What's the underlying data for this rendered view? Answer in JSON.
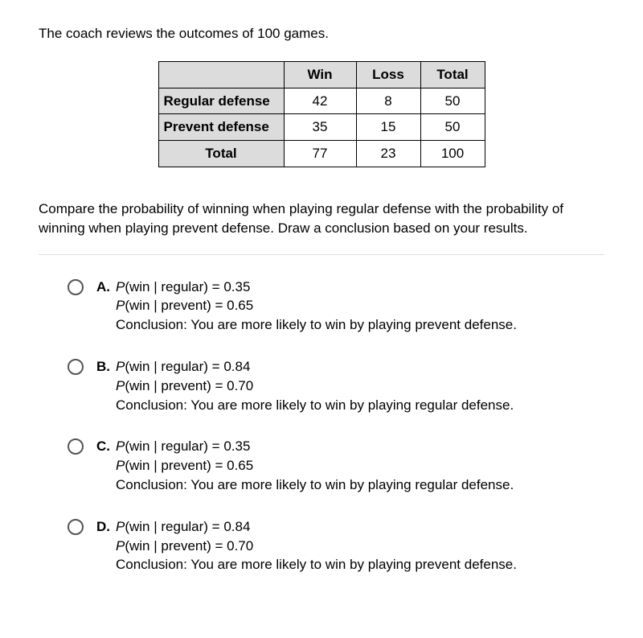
{
  "intro": "The coach reviews the outcomes of 100 games.",
  "table": {
    "columns": [
      "",
      "Win",
      "Loss",
      "Total"
    ],
    "rows": [
      {
        "label": "Regular defense",
        "win": "42",
        "loss": "8",
        "total": "50",
        "center": false
      },
      {
        "label": "Prevent defense",
        "win": "35",
        "loss": "15",
        "total": "50",
        "center": false
      },
      {
        "label": "Total",
        "win": "77",
        "loss": "23",
        "total": "100",
        "center": true
      }
    ]
  },
  "prompt": "Compare the probability of winning when playing regular defense with the probability of winning when playing prevent defense. Draw a conclusion based on your results.",
  "choices": [
    {
      "letter": "A.",
      "p_reg_label": "(win | regular) = ",
      "p_reg_val": "0.35",
      "p_prev_label": "(win | prevent) = ",
      "p_prev_val": "0.65",
      "conclusion": "Conclusion: You are more likely to win by playing prevent defense."
    },
    {
      "letter": "B.",
      "p_reg_label": "(win | regular) = ",
      "p_reg_val": "0.84",
      "p_prev_label": "(win | prevent) = ",
      "p_prev_val": "0.70",
      "conclusion": "Conclusion: You are more likely to win by playing regular defense."
    },
    {
      "letter": "C.",
      "p_reg_label": "(win | regular) = ",
      "p_reg_val": "0.35",
      "p_prev_label": "(win | prevent) = ",
      "p_prev_val": "0.65",
      "conclusion": "Conclusion: You are more likely to win by playing regular defense."
    },
    {
      "letter": "D.",
      "p_reg_label": "(win | regular) = ",
      "p_reg_val": "0.84",
      "p_prev_label": "(win | prevent) = ",
      "p_prev_val": "0.70",
      "conclusion": "Conclusion: You are more likely to win by playing prevent defense."
    }
  ]
}
